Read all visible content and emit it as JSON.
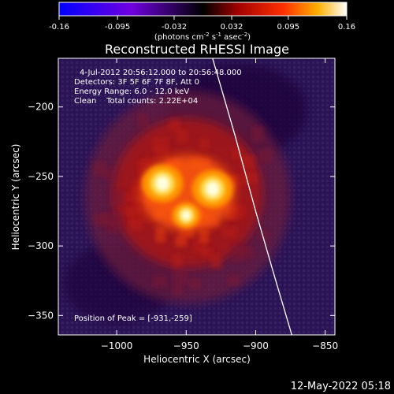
{
  "colorbar": {
    "ticks": [
      "-0.16",
      "-0.095",
      "-0.032",
      "0.032",
      "0.095",
      "0.16"
    ],
    "unit_prefix": "(photons cm",
    "unit_exp1": "-2",
    "unit_mid": " s",
    "unit_exp2": "-1",
    "unit_mid2": " asec",
    "unit_exp3": "-2",
    "unit_suffix": ")",
    "range": [
      -0.16,
      0.16
    ]
  },
  "title": "Reconstructed RHESSI Image",
  "info": {
    "time": "4-Jul-2012 20:56:12.000 to 20:56:48.000",
    "detectors": "Detectors: 3F 5F 6F 7F 8F, Att 0",
    "energy": "Energy Range: 6.0 - 12.0 keV",
    "clean": "Clean    Total counts: 2.22E+04",
    "peak": "Position of Peak = [-931,-259]"
  },
  "footer": "12-May-2022 05:18",
  "chart_data": {
    "type": "heatmap",
    "title": "Reconstructed RHESSI Image",
    "xlabel": "Heliocentric X (arcsec)",
    "ylabel": "Heliocentric Y (arcsec)",
    "xlim": [
      -1042,
      -843
    ],
    "ylim": [
      -364,
      -165
    ],
    "xticks": [
      -1000,
      -950,
      -900,
      -850
    ],
    "yticks": [
      -200,
      -250,
      -300,
      -350
    ],
    "sources": [
      {
        "x": -967,
        "y": -255,
        "intensity": 0.16
      },
      {
        "x": -931,
        "y": -259,
        "intensity": 0.16
      },
      {
        "x": -950,
        "y": -278,
        "intensity": 0.11
      }
    ],
    "limb_curve": [
      [
        -931,
        -165
      ],
      [
        -915,
        -220
      ],
      [
        -900,
        -275
      ],
      [
        -887,
        -320
      ],
      [
        -874,
        -364
      ]
    ],
    "peak": [
      -931,
      -259
    ]
  }
}
